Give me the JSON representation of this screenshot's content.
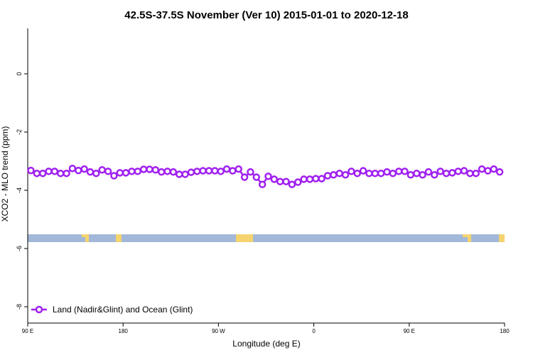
{
  "chart_data": {
    "type": "line",
    "title": "42.5S-37.5S November (Ver 10)   2015-01-01 to 2020-12-18",
    "x_label": "Longitude (deg E)",
    "y_label": "XCO2 - MLO trend (ppm)",
    "xlim": [
      90,
      540
    ],
    "xticks": [
      {
        "value": 90,
        "label": "90 E"
      },
      180,
      {
        "value": 270,
        "label": "90 W"
      },
      {
        "value": 360,
        "label": "0"
      },
      {
        "value": 450,
        "label": "90 E"
      },
      {
        "value": 540,
        "label": "180"
      }
    ],
    "ylim": [
      -8.56,
      1.56
    ],
    "yticks": [
      0,
      -2,
      -4,
      -6,
      -8
    ],
    "x": [
      93,
      98.6,
      104.2,
      109.8,
      115.4,
      121,
      126.6,
      132.2,
      137.8,
      143.4,
      149,
      154.6,
      160.2,
      165.8,
      171.4,
      177,
      182.6,
      188.2,
      193.8,
      199.4,
      205,
      210.6,
      216.2,
      221.8,
      227.4,
      233,
      238.6,
      244.2,
      249.8,
      255.4,
      261,
      266.6,
      272.2,
      277.8,
      283.4,
      289,
      294.6,
      300.2,
      305.8,
      311.4,
      317,
      322.6,
      328.2,
      333.8,
      339.4,
      345,
      350.6,
      356.2,
      361.8,
      367.4,
      373,
      378.6,
      384.2,
      389.8,
      395.4,
      401,
      406.6,
      412.2,
      417.8,
      423.4,
      429,
      434.6,
      440.2,
      445.8,
      451.4,
      457,
      462.6,
      468.2,
      473.8,
      479.4,
      485,
      490.6,
      496.2,
      501.8,
      507.4,
      513,
      518.6,
      524.2,
      529.8,
      535.4
    ],
    "series": [
      {
        "name": "Land (Nadir&Glint) and Ocean (Glint)",
        "color": "#a020f0",
        "values": [
          -3.32,
          -3.42,
          -3.42,
          -3.35,
          -3.35,
          -3.42,
          -3.42,
          -3.25,
          -3.32,
          -3.27,
          -3.37,
          -3.42,
          -3.3,
          -3.35,
          -3.5,
          -3.4,
          -3.4,
          -3.35,
          -3.35,
          -3.28,
          -3.28,
          -3.3,
          -3.37,
          -3.35,
          -3.37,
          -3.45,
          -3.45,
          -3.38,
          -3.35,
          -3.33,
          -3.33,
          -3.33,
          -3.35,
          -3.27,
          -3.33,
          -3.27,
          -3.55,
          -3.37,
          -3.55,
          -3.8,
          -3.52,
          -3.62,
          -3.7,
          -3.7,
          -3.8,
          -3.72,
          -3.62,
          -3.62,
          -3.6,
          -3.6,
          -3.5,
          -3.47,
          -3.42,
          -3.47,
          -3.35,
          -3.42,
          -3.33,
          -3.42,
          -3.42,
          -3.42,
          -3.37,
          -3.42,
          -3.35,
          -3.35,
          -3.47,
          -3.42,
          -3.47,
          -3.37,
          -3.47,
          -3.35,
          -3.42,
          -3.4,
          -3.35,
          -3.33,
          -3.42,
          -3.42,
          -3.27,
          -3.33,
          -3.27,
          -3.37
        ]
      }
    ],
    "legend": "bottom-left"
  }
}
